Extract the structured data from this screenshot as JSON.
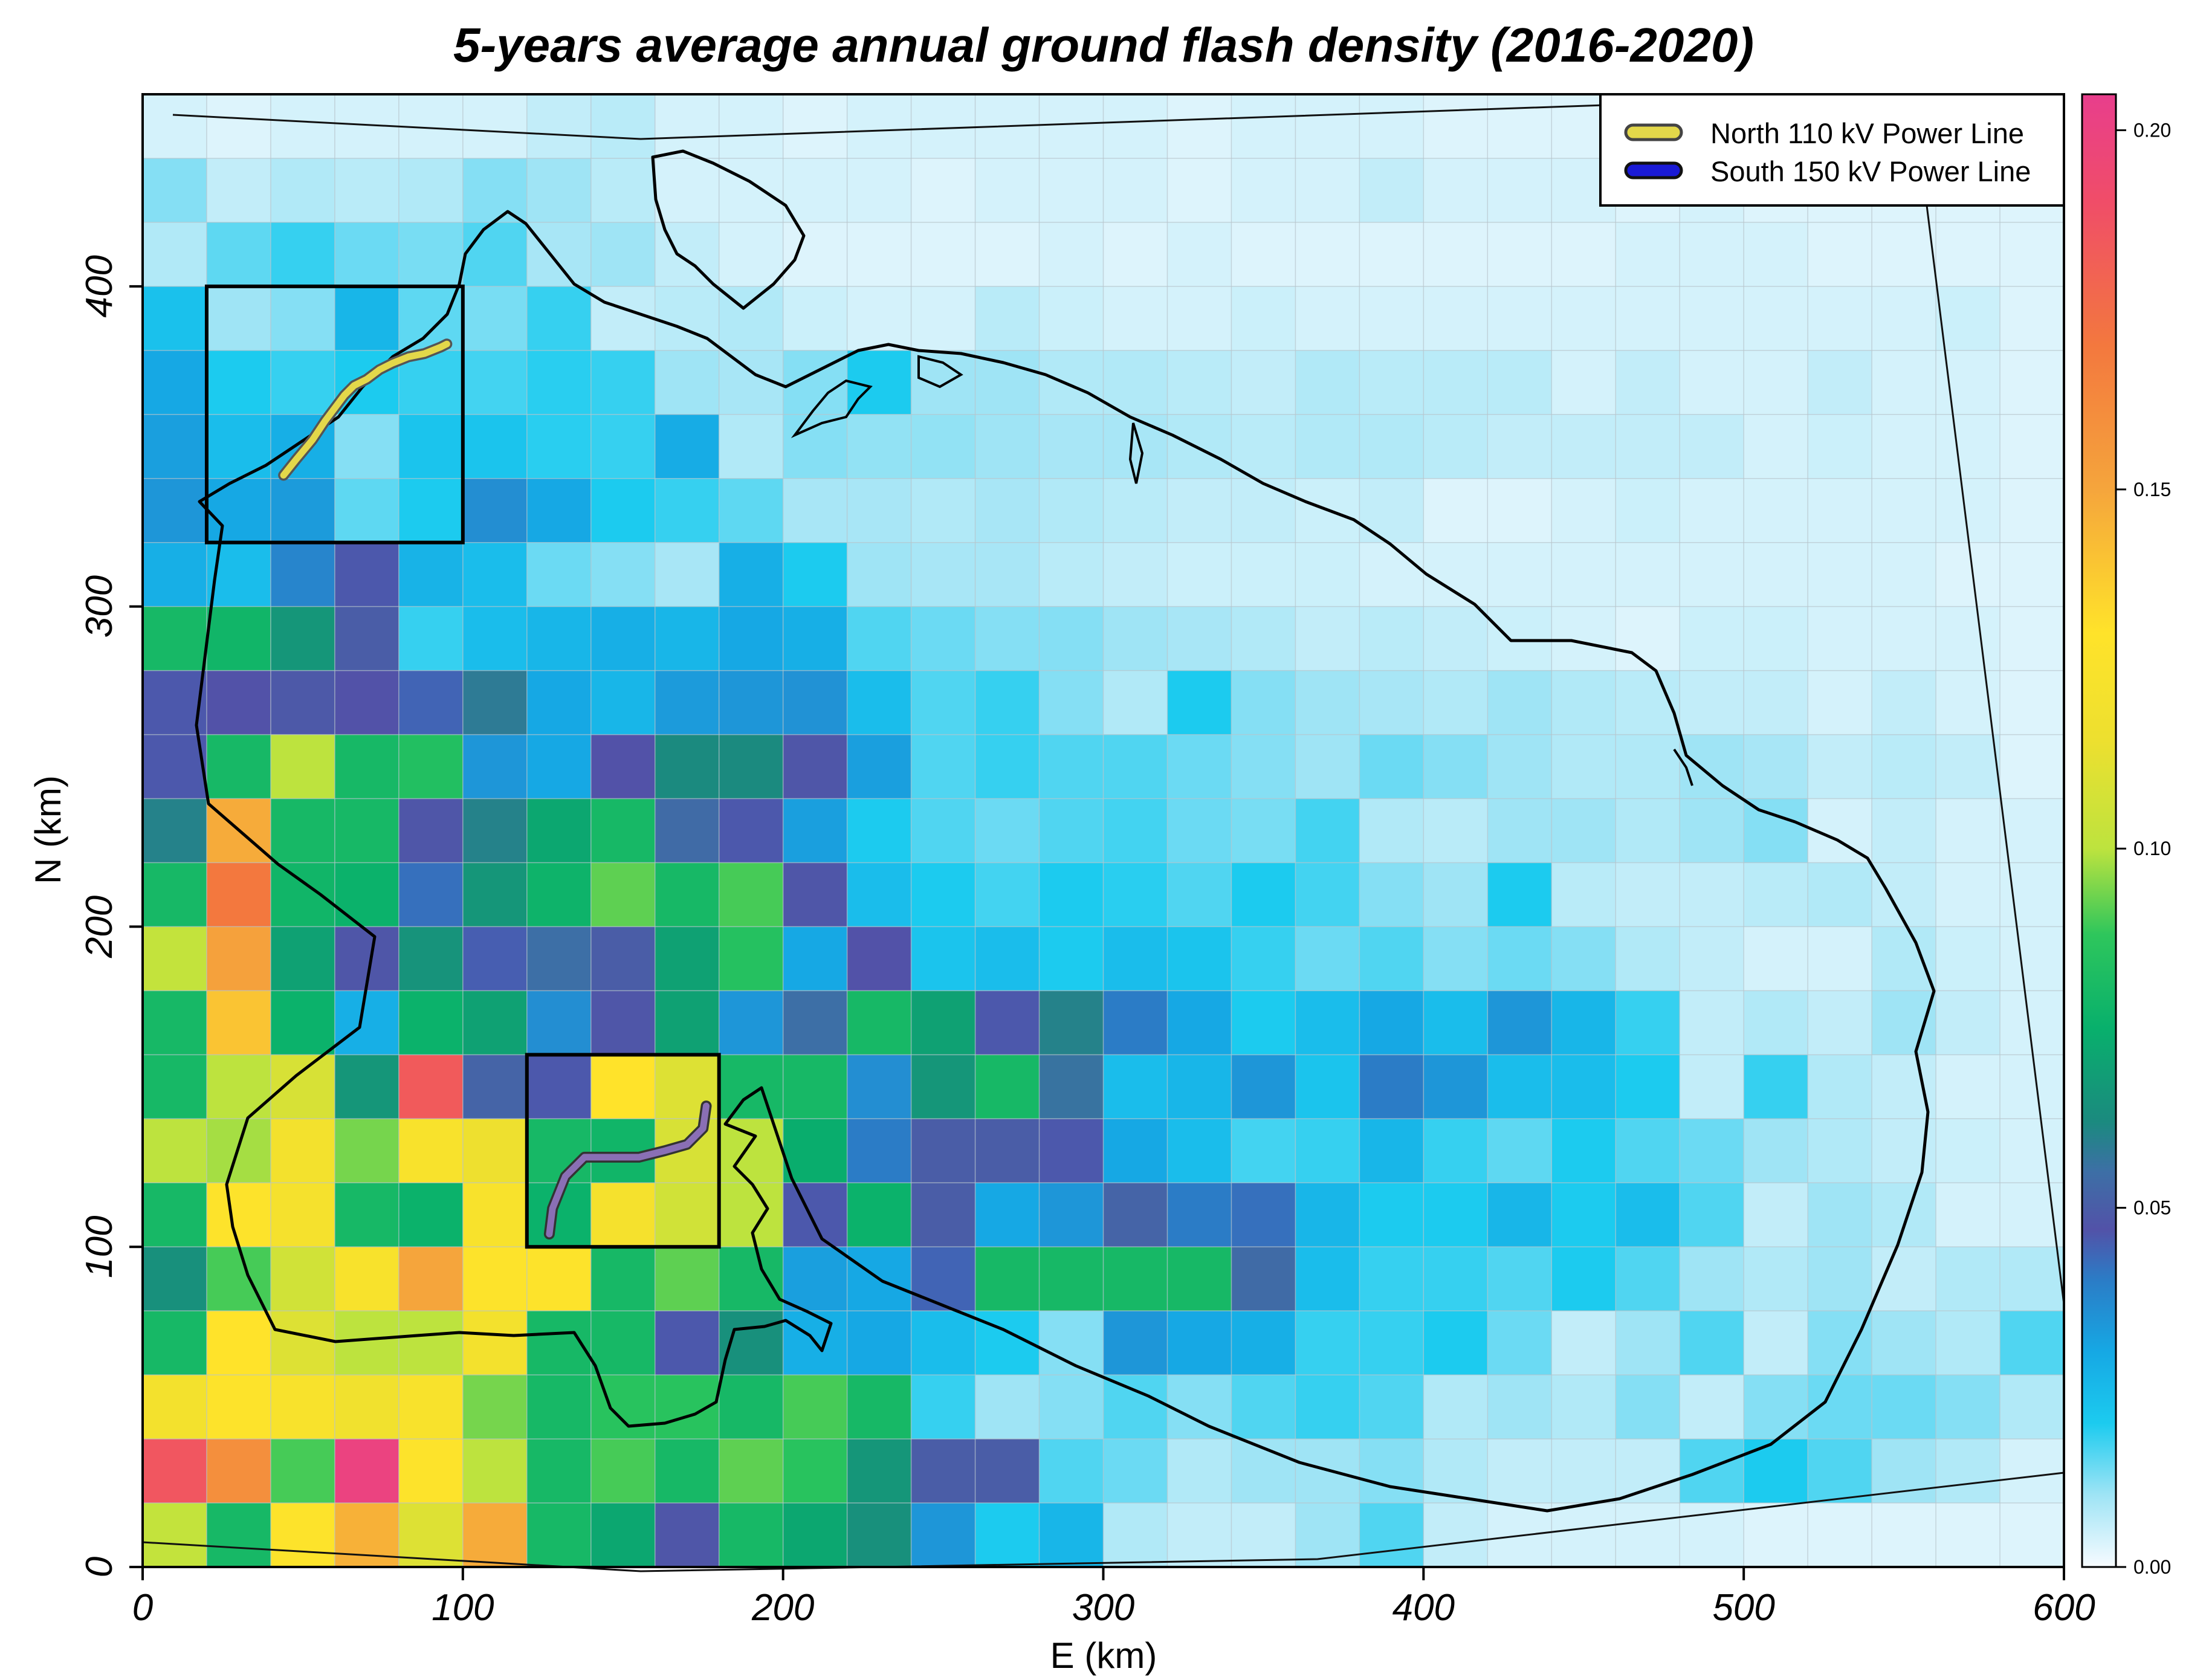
{
  "chart_data": {
    "type": "heatmap",
    "title": "5-years average annual ground flash density (2016-2020)",
    "xlabel": "E (km)",
    "ylabel": "N (km)",
    "xlim": [
      0,
      600
    ],
    "ylim": [
      0,
      460
    ],
    "cell_size_km": 20,
    "x_ticks": [
      0,
      100,
      200,
      300,
      400,
      500,
      600
    ],
    "y_ticks": [
      0,
      100,
      200,
      300,
      400
    ],
    "x_tick_labels": [
      "0",
      "100",
      "200",
      "300",
      "400",
      "500",
      "600"
    ],
    "y_tick_labels": [
      "0",
      "100",
      "200",
      "300",
      "400"
    ],
    "colorbar": {
      "min": 0.0,
      "max": 0.205,
      "ticks": [
        0.0,
        0.05,
        0.1,
        0.15,
        0.2
      ],
      "tick_labels": [
        "0.00",
        "0.05",
        "0.10",
        "0.15",
        "0.20"
      ],
      "stops": [
        {
          "v": 0.0,
          "c": "#f7fbff"
        },
        {
          "v": 0.01,
          "c": "#9fe4f5"
        },
        {
          "v": 0.02,
          "c": "#1ccbef"
        },
        {
          "v": 0.03,
          "c": "#16a8e4"
        },
        {
          "v": 0.04,
          "c": "#2b7cc6"
        },
        {
          "v": 0.047,
          "c": "#5252a8"
        },
        {
          "v": 0.055,
          "c": "#3d6fa6"
        },
        {
          "v": 0.062,
          "c": "#1b8a7f"
        },
        {
          "v": 0.075,
          "c": "#08b06c"
        },
        {
          "v": 0.088,
          "c": "#2ec65c"
        },
        {
          "v": 0.1,
          "c": "#bde33e"
        },
        {
          "v": 0.115,
          "c": "#ede02f"
        },
        {
          "v": 0.13,
          "c": "#ffe32a"
        },
        {
          "v": 0.15,
          "c": "#f5a53c"
        },
        {
          "v": 0.17,
          "c": "#f3783e"
        },
        {
          "v": 0.19,
          "c": "#f04d68"
        },
        {
          "v": 0.205,
          "c": "#e83e8c"
        }
      ]
    },
    "legend": {
      "position": "top-right",
      "entries": [
        {
          "label": "North 110 kV Power Line",
          "color": "#e3d84a"
        },
        {
          "label": "South 150 kV Power Line",
          "color": "#1a1ad6"
        }
      ]
    },
    "study_boxes_km": [
      {
        "x0": 20,
        "x1": 100,
        "y0": 320,
        "y1": 400
      },
      {
        "x0": 120,
        "x1": 180,
        "y0": 100,
        "y1": 160
      }
    ],
    "north_line_km": [
      [
        44,
        341
      ],
      [
        48,
        346
      ],
      [
        53,
        352
      ],
      [
        57,
        358
      ],
      [
        60,
        362
      ],
      [
        63,
        366
      ],
      [
        66,
        369
      ],
      [
        70,
        371
      ],
      [
        74,
        374
      ],
      [
        78,
        376
      ],
      [
        83,
        378
      ],
      [
        88,
        379
      ],
      [
        93,
        381
      ],
      [
        95,
        382
      ]
    ],
    "south_line_km": [
      [
        127,
        104
      ],
      [
        128,
        112
      ],
      [
        132,
        122
      ],
      [
        138,
        128
      ],
      [
        146,
        128
      ],
      [
        155,
        128
      ],
      [
        163,
        130
      ],
      [
        170,
        132
      ],
      [
        175,
        137
      ],
      [
        176,
        144
      ]
    ],
    "grid_rows_top_to_bottom": [
      [
        0.004,
        0.003,
        0.004,
        0.004,
        0.004,
        0.004,
        0.006,
        0.007,
        0.004,
        0.004,
        0.003,
        0.004,
        0.004,
        0.004,
        0.004,
        0.004,
        0.003,
        0.004,
        0.004,
        0.004,
        0.003,
        0.003,
        0.003,
        0.004,
        0.004,
        0.003,
        0.003,
        0.003,
        0.003,
        0.003
      ],
      [
        0.012,
        0.006,
        0.008,
        0.007,
        0.008,
        0.012,
        0.01,
        0.007,
        0.004,
        0.004,
        0.004,
        0.004,
        0.003,
        0.004,
        0.004,
        0.004,
        0.003,
        0.004,
        0.004,
        0.006,
        0.004,
        0.004,
        0.004,
        0.003,
        0.004,
        0.003,
        0.003,
        0.003,
        0.003,
        0.003
      ],
      [
        0.008,
        0.015,
        0.018,
        0.014,
        0.013,
        0.016,
        0.009,
        0.01,
        0.006,
        0.004,
        0.003,
        0.003,
        0.003,
        0.003,
        0.004,
        0.003,
        0.004,
        0.003,
        0.003,
        0.003,
        0.003,
        0.003,
        0.003,
        0.004,
        0.004,
        0.004,
        0.003,
        0.003,
        0.003,
        0.003
      ],
      [
        0.023,
        0.01,
        0.012,
        0.026,
        0.015,
        0.013,
        0.018,
        0.006,
        0.007,
        0.008,
        0.005,
        0.004,
        0.004,
        0.007,
        0.005,
        0.004,
        0.004,
        0.005,
        0.004,
        0.004,
        0.004,
        0.004,
        0.004,
        0.004,
        0.004,
        0.004,
        0.004,
        0.004,
        0.005,
        0.003
      ],
      [
        0.03,
        0.02,
        0.018,
        0.02,
        0.018,
        0.017,
        0.019,
        0.018,
        0.01,
        0.009,
        0.012,
        0.02,
        0.01,
        0.01,
        0.008,
        0.008,
        0.007,
        0.006,
        0.008,
        0.007,
        0.007,
        0.007,
        0.004,
        0.006,
        0.004,
        0.004,
        0.006,
        0.004,
        0.004,
        0.003
      ],
      [
        0.032,
        0.024,
        0.028,
        0.012,
        0.022,
        0.022,
        0.019,
        0.018,
        0.029,
        0.008,
        0.012,
        0.011,
        0.011,
        0.01,
        0.009,
        0.009,
        0.008,
        0.007,
        0.008,
        0.008,
        0.007,
        0.006,
        0.006,
        0.006,
        0.006,
        0.004,
        0.005,
        0.004,
        0.004,
        0.003
      ],
      [
        0.034,
        0.03,
        0.033,
        0.015,
        0.02,
        0.036,
        0.03,
        0.02,
        0.018,
        0.015,
        0.009,
        0.009,
        0.008,
        0.009,
        0.008,
        0.007,
        0.006,
        0.006,
        0.005,
        0.006,
        0.003,
        0.003,
        0.004,
        0.005,
        0.004,
        0.004,
        0.004,
        0.004,
        0.004,
        0.003
      ],
      [
        0.028,
        0.024,
        0.038,
        0.046,
        0.027,
        0.024,
        0.014,
        0.012,
        0.009,
        0.028,
        0.02,
        0.01,
        0.009,
        0.009,
        0.007,
        0.006,
        0.005,
        0.005,
        0.005,
        0.004,
        0.004,
        0.004,
        0.004,
        0.004,
        0.004,
        0.004,
        0.004,
        0.004,
        0.003,
        0.003
      ],
      [
        0.08,
        0.078,
        0.066,
        0.05,
        0.018,
        0.024,
        0.026,
        0.028,
        0.026,
        0.03,
        0.028,
        0.016,
        0.014,
        0.012,
        0.012,
        0.01,
        0.009,
        0.008,
        0.006,
        0.007,
        0.006,
        0.005,
        0.004,
        0.003,
        0.005,
        0.005,
        0.004,
        0.004,
        0.004,
        0.003
      ],
      [
        0.046,
        0.047,
        0.049,
        0.047,
        0.044,
        0.058,
        0.03,
        0.026,
        0.033,
        0.034,
        0.035,
        0.024,
        0.016,
        0.018,
        0.012,
        0.008,
        0.02,
        0.012,
        0.01,
        0.009,
        0.008,
        0.01,
        0.008,
        0.007,
        0.006,
        0.006,
        0.004,
        0.006,
        0.004,
        0.003
      ],
      [
        0.046,
        0.08,
        0.1,
        0.08,
        0.084,
        0.034,
        0.03,
        0.047,
        0.062,
        0.062,
        0.048,
        0.032,
        0.016,
        0.018,
        0.016,
        0.016,
        0.014,
        0.012,
        0.01,
        0.014,
        0.012,
        0.01,
        0.008,
        0.008,
        0.01,
        0.009,
        0.006,
        0.007,
        0.006,
        0.003
      ],
      [
        0.06,
        0.148,
        0.08,
        0.08,
        0.048,
        0.06,
        0.072,
        0.08,
        0.054,
        0.046,
        0.032,
        0.02,
        0.016,
        0.014,
        0.016,
        0.017,
        0.014,
        0.013,
        0.017,
        0.008,
        0.007,
        0.01,
        0.01,
        0.008,
        0.01,
        0.012,
        0.004,
        0.006,
        0.004,
        0.004
      ],
      [
        0.08,
        0.17,
        0.078,
        0.076,
        0.042,
        0.066,
        0.077,
        0.092,
        0.08,
        0.09,
        0.048,
        0.024,
        0.02,
        0.017,
        0.02,
        0.019,
        0.016,
        0.02,
        0.017,
        0.012,
        0.01,
        0.02,
        0.007,
        0.006,
        0.006,
        0.007,
        0.008,
        0.006,
        0.004,
        0.004
      ],
      [
        0.102,
        0.152,
        0.07,
        0.048,
        0.065,
        0.045,
        0.055,
        0.05,
        0.07,
        0.085,
        0.03,
        0.047,
        0.022,
        0.024,
        0.02,
        0.024,
        0.022,
        0.018,
        0.014,
        0.016,
        0.012,
        0.014,
        0.012,
        0.008,
        0.006,
        0.004,
        0.004,
        0.008,
        0.005,
        0.004
      ],
      [
        0.08,
        0.14,
        0.076,
        0.028,
        0.076,
        0.07,
        0.036,
        0.048,
        0.07,
        0.034,
        0.055,
        0.08,
        0.07,
        0.046,
        0.06,
        0.04,
        0.03,
        0.02,
        0.024,
        0.03,
        0.024,
        0.034,
        0.026,
        0.018,
        0.006,
        0.008,
        0.006,
        0.01,
        0.006,
        0.004
      ],
      [
        0.08,
        0.1,
        0.108,
        0.066,
        0.184,
        0.052,
        0.046,
        0.13,
        0.11,
        0.08,
        0.08,
        0.036,
        0.066,
        0.08,
        0.056,
        0.024,
        0.026,
        0.034,
        0.022,
        0.04,
        0.034,
        0.024,
        0.024,
        0.02,
        0.006,
        0.018,
        0.008,
        0.006,
        0.004,
        0.004
      ],
      [
        0.1,
        0.098,
        0.12,
        0.094,
        0.124,
        0.116,
        0.08,
        0.078,
        0.108,
        0.1,
        0.074,
        0.04,
        0.05,
        0.05,
        0.046,
        0.03,
        0.024,
        0.017,
        0.018,
        0.026,
        0.018,
        0.015,
        0.02,
        0.016,
        0.014,
        0.01,
        0.008,
        0.006,
        0.005,
        0.004
      ],
      [
        0.08,
        0.128,
        0.122,
        0.08,
        0.076,
        0.124,
        0.076,
        0.122,
        0.106,
        0.1,
        0.046,
        0.076,
        0.05,
        0.03,
        0.034,
        0.052,
        0.04,
        0.042,
        0.026,
        0.02,
        0.02,
        0.026,
        0.02,
        0.024,
        0.016,
        0.006,
        0.01,
        0.008,
        0.004,
        0.004
      ],
      [
        0.064,
        0.09,
        0.106,
        0.124,
        0.15,
        0.128,
        0.128,
        0.08,
        0.092,
        0.08,
        0.032,
        0.03,
        0.044,
        0.08,
        0.08,
        0.08,
        0.08,
        0.054,
        0.024,
        0.018,
        0.018,
        0.016,
        0.02,
        0.016,
        0.01,
        0.008,
        0.01,
        0.006,
        0.008,
        0.008
      ],
      [
        0.08,
        0.13,
        0.11,
        0.1,
        0.1,
        0.12,
        0.08,
        0.08,
        0.046,
        0.064,
        0.028,
        0.03,
        0.024,
        0.02,
        0.012,
        0.034,
        0.03,
        0.028,
        0.018,
        0.018,
        0.02,
        0.014,
        0.006,
        0.01,
        0.016,
        0.006,
        0.012,
        0.01,
        0.008,
        0.016
      ],
      [
        0.12,
        0.128,
        0.124,
        0.118,
        0.124,
        0.094,
        0.08,
        0.086,
        0.086,
        0.08,
        0.09,
        0.08,
        0.018,
        0.01,
        0.012,
        0.016,
        0.012,
        0.016,
        0.018,
        0.016,
        0.008,
        0.01,
        0.008,
        0.012,
        0.006,
        0.012,
        0.014,
        0.014,
        0.012,
        0.008
      ],
      [
        0.186,
        0.16,
        0.09,
        0.2,
        0.128,
        0.1,
        0.08,
        0.09,
        0.08,
        0.092,
        0.086,
        0.066,
        0.05,
        0.05,
        0.016,
        0.014,
        0.008,
        0.01,
        0.01,
        0.012,
        0.008,
        0.006,
        0.006,
        0.006,
        0.016,
        0.02,
        0.016,
        0.01,
        0.008,
        0.004
      ],
      [
        0.102,
        0.08,
        0.128,
        0.146,
        0.11,
        0.148,
        0.08,
        0.072,
        0.048,
        0.08,
        0.072,
        0.064,
        0.034,
        0.02,
        0.026,
        0.008,
        0.006,
        0.006,
        0.01,
        0.016,
        0.006,
        0.004,
        0.004,
        0.004,
        0.004,
        0.003,
        0.003,
        0.003,
        0.003,
        0.003
      ]
    ]
  }
}
